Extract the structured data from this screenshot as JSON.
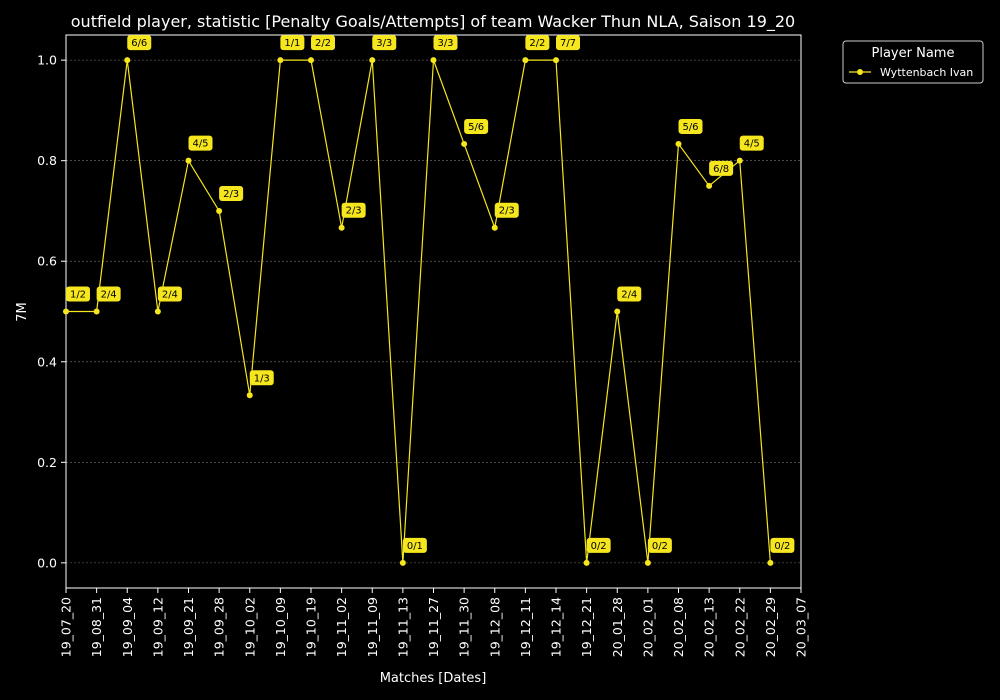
{
  "chart_data": {
    "type": "line",
    "title": "outfield player, statistic [Penalty Goals/Attempts] of team Wacker Thun NLA, Saison 19_20",
    "xlabel": "Matches [Dates]",
    "ylabel": "7M",
    "ylim": [
      -0.05,
      1.05
    ],
    "yticks": [
      "0.0",
      "0.2",
      "0.4",
      "0.6",
      "0.8",
      "1.0"
    ],
    "grid": true,
    "legend": {
      "title": "Player Name",
      "placement": "top-right-outside"
    },
    "categories": [
      "19_07_20",
      "19_08_31",
      "19_09_04",
      "19_09_12",
      "19_09_21",
      "19_09_28",
      "19_10_02",
      "19_10_09",
      "19_10_19",
      "19_11_02",
      "19_11_09",
      "19_11_13",
      "19_11_27",
      "19_11_30",
      "19_12_08",
      "19_12_11",
      "19_12_14",
      "19_12_21",
      "20_01_28",
      "20_02_01",
      "20_02_08",
      "20_02_13",
      "20_02_22",
      "20_02_29",
      "20_03_07"
    ],
    "series": [
      {
        "name": "Wyttenbach Ivan",
        "color": "#f5e61e",
        "values": [
          0.5,
          0.5,
          1.0,
          0.5,
          0.8,
          0.7,
          0.3333,
          1.0,
          1.0,
          0.6667,
          1.0,
          0.0,
          1.0,
          0.8333,
          0.6667,
          1.0,
          1.0,
          0.0,
          0.5,
          0.0,
          0.8333,
          0.75,
          0.8,
          0.0,
          null
        ],
        "labels": [
          "1/2",
          "2/4",
          "6/6",
          "2/4",
          "4/5",
          "2/3",
          "1/3",
          "1/1",
          "2/2",
          "2/3",
          "3/3",
          "0/1",
          "3/3",
          "5/6",
          "2/3",
          "2/2",
          "7/7",
          "0/2",
          "2/4",
          "0/2",
          "5/6",
          "6/8",
          "4/5",
          "0/2",
          null
        ]
      }
    ]
  }
}
